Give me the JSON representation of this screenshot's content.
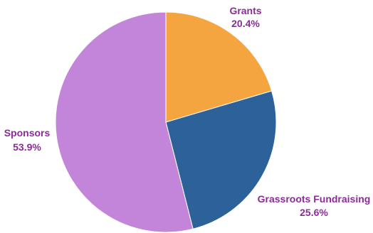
{
  "chart_data": {
    "type": "pie",
    "title": "",
    "start_angle_deg": 0,
    "direction": "clockwise",
    "slices": [
      {
        "label": "Grants",
        "value": 20.4,
        "value_text": "20.4%",
        "color": "#F4A53F"
      },
      {
        "label": "Grassroots Fundraising",
        "value": 25.6,
        "value_text": "25.6%",
        "color": "#2C6199"
      },
      {
        "label": "Sponsors",
        "value": 53.9,
        "value_text": "53.9%",
        "color": "#C285DA"
      }
    ],
    "label_color": "#8B2B98"
  }
}
